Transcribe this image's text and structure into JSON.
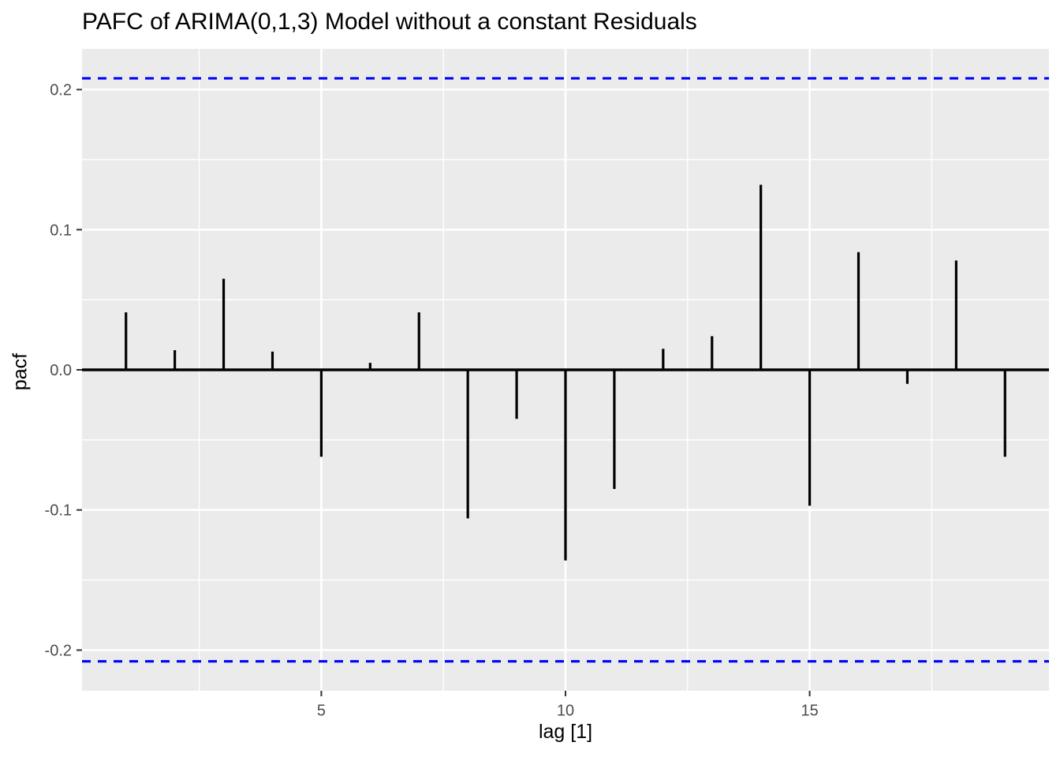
{
  "chart_data": {
    "type": "bar",
    "subtype": "pacf-stem-plot",
    "title": "PAFC of ARIMA(0,1,3) Model without a constant Residuals",
    "xlabel": "lag [1]",
    "ylabel": "pacf",
    "x": [
      1,
      2,
      3,
      4,
      5,
      6,
      7,
      8,
      9,
      10,
      11,
      12,
      13,
      14,
      15,
      16,
      17,
      18,
      19
    ],
    "values": [
      0.041,
      0.014,
      0.065,
      0.013,
      -0.062,
      0.005,
      0.041,
      -0.106,
      -0.035,
      -0.136,
      -0.085,
      0.015,
      0.024,
      0.132,
      -0.097,
      0.084,
      -0.01,
      0.078,
      -0.062
    ],
    "confidence_bounds": {
      "upper": 0.208,
      "lower": -0.208,
      "style": "dashed"
    },
    "x_ticks": [
      5,
      10,
      15
    ],
    "x_tick_labels": [
      "5",
      "10",
      "15"
    ],
    "y_ticks": [
      0.2,
      0.1,
      0.0,
      -0.1,
      -0.2
    ],
    "y_tick_labels": [
      "0.2",
      "0.1",
      "0.0",
      "-0.1",
      "-0.2"
    ],
    "x_minor_gridlines": [
      2.5,
      7.5,
      12.5,
      17.5
    ],
    "y_minor_gridlines": [
      0.15,
      0.05,
      -0.05,
      -0.15
    ],
    "xlim": [
      0.1,
      19.9
    ],
    "ylim": [
      -0.229,
      0.229
    ],
    "grid": true,
    "legend": false,
    "zero_line": 0.0,
    "colors": {
      "bar": "#000000",
      "zero_line": "#000000",
      "ci_line": "#0000FF",
      "panel_bg": "#EBEBEB",
      "grid": "#FFFFFF",
      "tick_text": "#4D4D4D",
      "tick_mark": "#333333",
      "title_text": "#000000",
      "page_bg": "#FFFFFF"
    }
  }
}
